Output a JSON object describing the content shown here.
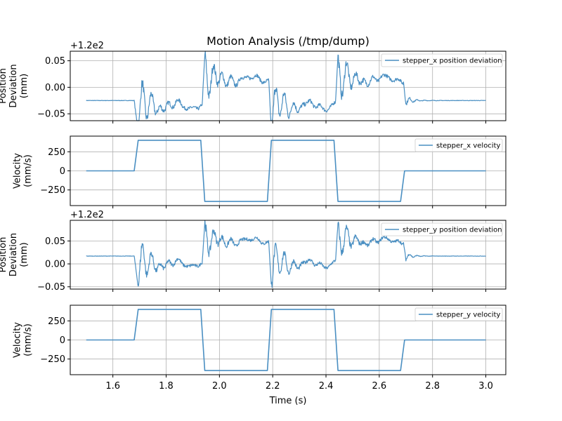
{
  "title": "Motion Analysis (/tmp/dump)",
  "colors": {
    "line": "#4a8fc2",
    "grid": "#b0b0b0",
    "frame": "#000000"
  },
  "chart_data": [
    {
      "type": "line",
      "series": [
        {
          "name": "stepper_x position deviation"
        }
      ],
      "ylabel": [
        "Position",
        "Deviation",
        "(mm)"
      ],
      "offset_label": "+1.2e2",
      "ylim": [
        -0.063,
        0.068
      ],
      "yticks": [
        0.05,
        0.0,
        -0.05
      ],
      "yticklabels": [
        "0.05",
        "0.00",
        "−0.05"
      ],
      "xlim": [
        1.44,
        3.075
      ],
      "xticks": [
        1.6,
        1.8,
        2.0,
        2.2,
        2.4,
        2.6,
        2.8,
        3.0
      ],
      "base": -0.025,
      "plateau_low": -0.035,
      "plateau_high": 0.015,
      "spike_min": -0.085,
      "spike_max": 0.06,
      "legend": "top-right",
      "grid": true
    },
    {
      "type": "line",
      "series": [
        {
          "name": "stepper_x velocity"
        }
      ],
      "ylabel": [
        "Velocity",
        "(mm/s)"
      ],
      "ylim": [
        -455,
        455
      ],
      "yticks": [
        250,
        0,
        -250
      ],
      "yticklabels": [
        "250",
        "0",
        "−250"
      ],
      "xlim": [
        1.44,
        3.075
      ],
      "xticks": [
        1.6,
        1.8,
        2.0,
        2.2,
        2.4,
        2.6,
        2.8,
        3.0
      ],
      "segments": [
        [
          1.5,
          0
        ],
        [
          1.68,
          0
        ],
        [
          1.695,
          400
        ],
        [
          1.93,
          400
        ],
        [
          1.945,
          -400
        ],
        [
          2.18,
          -400
        ],
        [
          2.195,
          400
        ],
        [
          2.43,
          400
        ],
        [
          2.445,
          -400
        ],
        [
          2.68,
          -400
        ],
        [
          2.695,
          0
        ],
        [
          3.0,
          0
        ]
      ],
      "legend": "top-right",
      "grid": true
    },
    {
      "type": "line",
      "series": [
        {
          "name": "stepper_y position deviation"
        }
      ],
      "ylabel": [
        "Position",
        "Deviation",
        "(mm)"
      ],
      "offset_label": "+1.2e2",
      "ylim": [
        -0.055,
        0.095
      ],
      "yticks": [
        0.05,
        0.0,
        -0.05
      ],
      "yticklabels": [
        "0.05",
        "0.00",
        "−0.05"
      ],
      "xlim": [
        1.44,
        3.075
      ],
      "xticks": [
        1.6,
        1.8,
        2.0,
        2.2,
        2.4,
        2.6,
        2.8,
        3.0
      ],
      "base": 0.017,
      "plateau_low": 0.0,
      "plateau_high": 0.05,
      "spike_min": -0.05,
      "spike_max": 0.088,
      "legend": "top-right",
      "grid": true
    },
    {
      "type": "line",
      "series": [
        {
          "name": "stepper_y velocity"
        }
      ],
      "ylabel": [
        "Velocity",
        "(mm/s)"
      ],
      "ylim": [
        -455,
        455
      ],
      "yticks": [
        250,
        0,
        -250
      ],
      "yticklabels": [
        "250",
        "0",
        "−250"
      ],
      "xlim": [
        1.44,
        3.075
      ],
      "xticks": [
        1.6,
        1.8,
        2.0,
        2.2,
        2.4,
        2.6,
        2.8,
        3.0
      ],
      "xticklabels": [
        "1.6",
        "1.8",
        "2.0",
        "2.2",
        "2.4",
        "2.6",
        "2.8",
        "3.0"
      ],
      "xlabel": "Time (s)",
      "segments": [
        [
          1.5,
          0
        ],
        [
          1.68,
          0
        ],
        [
          1.695,
          400
        ],
        [
          1.93,
          400
        ],
        [
          1.945,
          -400
        ],
        [
          2.18,
          -400
        ],
        [
          2.195,
          400
        ],
        [
          2.43,
          400
        ],
        [
          2.445,
          -400
        ],
        [
          2.68,
          -400
        ],
        [
          2.695,
          0
        ],
        [
          3.0,
          0
        ]
      ],
      "legend": "top-right",
      "grid": true
    }
  ]
}
